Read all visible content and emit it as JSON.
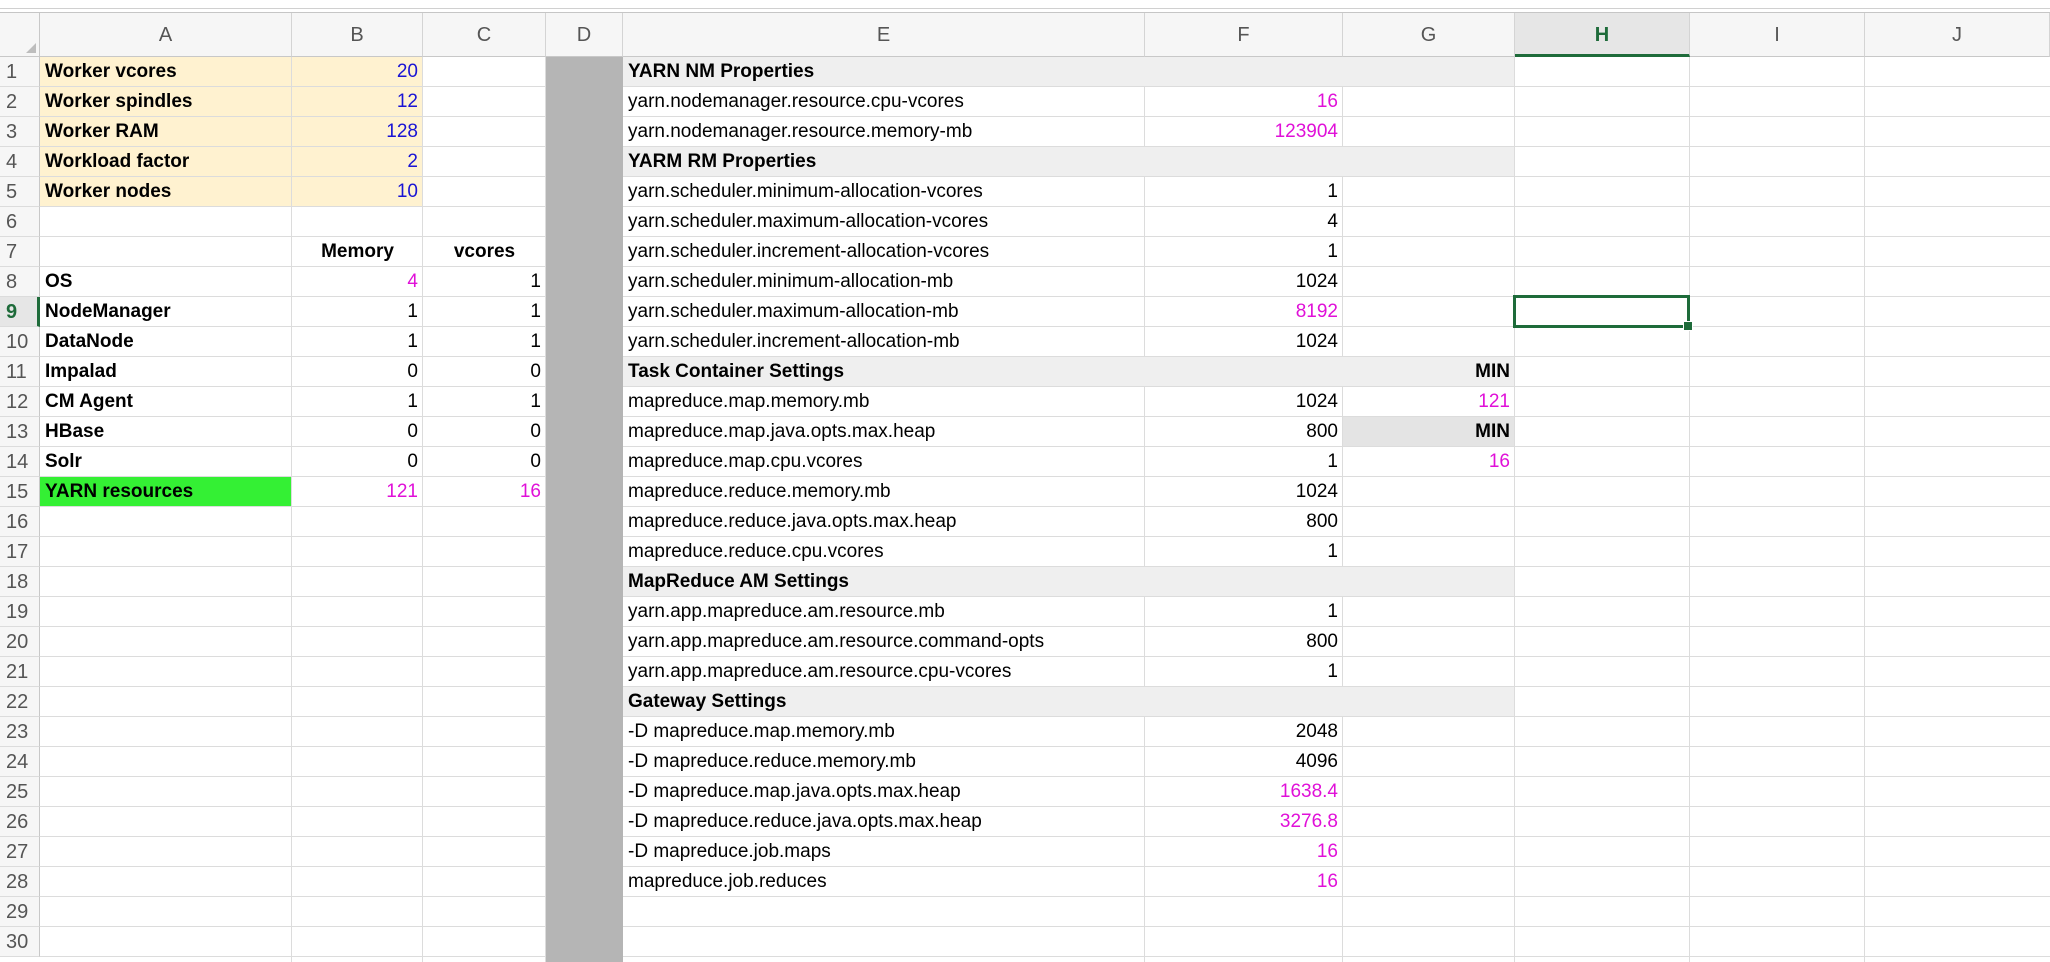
{
  "columns": [
    "A",
    "B",
    "C",
    "D",
    "E",
    "F",
    "G",
    "H",
    "I",
    "J"
  ],
  "rows": [
    "1",
    "2",
    "3",
    "4",
    "5",
    "6",
    "7",
    "8",
    "9",
    "10",
    "11",
    "12",
    "13",
    "14",
    "15",
    "16",
    "17",
    "18",
    "19",
    "20",
    "21",
    "22",
    "23",
    "24",
    "25",
    "26",
    "27",
    "28",
    "29",
    "30"
  ],
  "colors": {
    "input_fill": "#fff2d0",
    "result_fill": "#34f034",
    "section_fill": "#efefef",
    "min_fill": "#e4e4e4",
    "separator_fill": "#b5b5b5",
    "input_text": "#1a14d4",
    "formula_text": "#e010d8",
    "selection": "#1e6b3a"
  },
  "worker_inputs": [
    {
      "label": "Worker vcores",
      "value": "20"
    },
    {
      "label": "Worker spindles",
      "value": "12"
    },
    {
      "label": "Worker RAM",
      "value": "128"
    },
    {
      "label": "Workload factor",
      "value": "2"
    },
    {
      "label": "Worker nodes",
      "value": "10"
    }
  ],
  "service_headers": {
    "memory": "Memory",
    "vcores": "vcores"
  },
  "services": [
    {
      "name": "OS",
      "memory": "4",
      "vcores": "1"
    },
    {
      "name": "NodeManager",
      "memory": "1",
      "vcores": "1"
    },
    {
      "name": "DataNode",
      "memory": "1",
      "vcores": "1"
    },
    {
      "name": "Impalad",
      "memory": "0",
      "vcores": "0"
    },
    {
      "name": "CM Agent",
      "memory": "1",
      "vcores": "1"
    },
    {
      "name": "HBase",
      "memory": "0",
      "vcores": "0"
    },
    {
      "name": "Solr",
      "memory": "0",
      "vcores": "0"
    },
    {
      "name": "YARN resources",
      "memory": "121",
      "vcores": "16"
    }
  ],
  "properties": [
    {
      "key": "YARN NM Properties",
      "section": true
    },
    {
      "key": "yarn.nodemanager.resource.cpu-vcores",
      "value": "16",
      "formula": true
    },
    {
      "key": "yarn.nodemanager.resource.memory-mb",
      "value": "123904",
      "formula": true
    },
    {
      "key": "YARM RM Properties",
      "section": true
    },
    {
      "key": "yarn.scheduler.minimum-allocation-vcores",
      "value": "1"
    },
    {
      "key": "yarn.scheduler.maximum-allocation-vcores",
      "value": "4"
    },
    {
      "key": "yarn.scheduler.increment-allocation-vcores",
      "value": "1"
    },
    {
      "key": "yarn.scheduler.minimum-allocation-mb",
      "value": "1024"
    },
    {
      "key": "yarn.scheduler.maximum-allocation-mb",
      "value": "8192",
      "formula": true
    },
    {
      "key": "yarn.scheduler.increment-allocation-mb",
      "value": "1024"
    },
    {
      "key": "Task Container Settings",
      "section": true,
      "g": "MIN",
      "gstyle": "min"
    },
    {
      "key": "mapreduce.map.memory.mb",
      "value": "1024",
      "g": "121",
      "gstyle": "formula"
    },
    {
      "key": "mapreduce.map.java.opts.max.heap",
      "value": "800",
      "g": "MIN",
      "gstyle": "min"
    },
    {
      "key": "mapreduce.map.cpu.vcores",
      "value": "1",
      "g": "16",
      "gstyle": "formula"
    },
    {
      "key": "mapreduce.reduce.memory.mb",
      "value": "1024"
    },
    {
      "key": "mapreduce.reduce.java.opts.max.heap",
      "value": "800"
    },
    {
      "key": "mapreduce.reduce.cpu.vcores",
      "value": "1"
    },
    {
      "key": "MapReduce AM Settings",
      "section": true
    },
    {
      "key": "yarn.app.mapreduce.am.resource.mb",
      "value": "1"
    },
    {
      "key": "yarn.app.mapreduce.am.resource.command-opts",
      "value": "800"
    },
    {
      "key": "yarn.app.mapreduce.am.resource.cpu-vcores",
      "value": "1"
    },
    {
      "key": "Gateway Settings",
      "section": true
    },
    {
      "key": "-D mapreduce.map.memory.mb",
      "value": "2048"
    },
    {
      "key": "-D mapreduce.reduce.memory.mb",
      "value": "4096"
    },
    {
      "key": "-D mapreduce.map.java.opts.max.heap",
      "value": "1638.4",
      "formula": true
    },
    {
      "key": "-D mapreduce.reduce.java.opts.max.heap",
      "value": "3276.8",
      "formula": true
    },
    {
      "key": "-D mapreduce.job.maps",
      "value": "16",
      "formula": true
    },
    {
      "key": "mapreduce.job.reduces",
      "value": "16",
      "formula": true
    }
  ]
}
